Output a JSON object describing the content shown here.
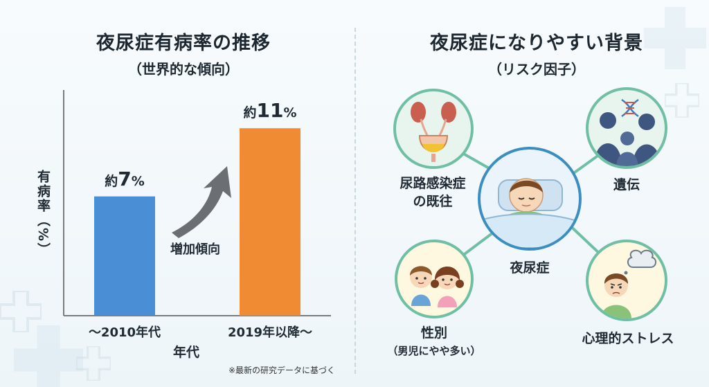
{
  "left_panel": {
    "title": "夜尿症有病率の推移",
    "subtitle": "（世界的な傾向）",
    "arrow_label": "増加傾向",
    "value_prefix": "約",
    "value_suffix": "%",
    "footnote": "※最新の研究データに基づく"
  },
  "chart_data": {
    "type": "bar",
    "title": "夜尿症有病率の推移",
    "subtitle": "（世界的な傾向）",
    "categories": [
      "～2010年代",
      "2019年以降～"
    ],
    "values": [
      7,
      11
    ],
    "value_labels": [
      "7",
      "11"
    ],
    "xlabel": "年代",
    "ylabel": "有病率（%）",
    "ylim": [
      0,
      13
    ],
    "grid": false,
    "bar_colors": [
      "#4a8fd6",
      "#f08a33"
    ],
    "annotation": "増加傾向"
  },
  "right_panel": {
    "title": "夜尿症になりやすい背景",
    "subtitle": "（リスク因子）",
    "center_label": "夜尿症",
    "nodes": {
      "uti": {
        "line1": "尿路感染症",
        "line2": "の既往",
        "icon": "urinary-tract-icon"
      },
      "heredity": {
        "label": "遺伝",
        "icon": "family-dna-icon"
      },
      "gender": {
        "label": "性別",
        "sub": "（男児にやや多い）",
        "icon": "boy-girl-icon"
      },
      "stress": {
        "label": "心理的ストレス",
        "icon": "worried-child-icon"
      }
    },
    "colors": {
      "ring": "#6fbfa4",
      "center_ring": "#3a8fc0"
    }
  }
}
